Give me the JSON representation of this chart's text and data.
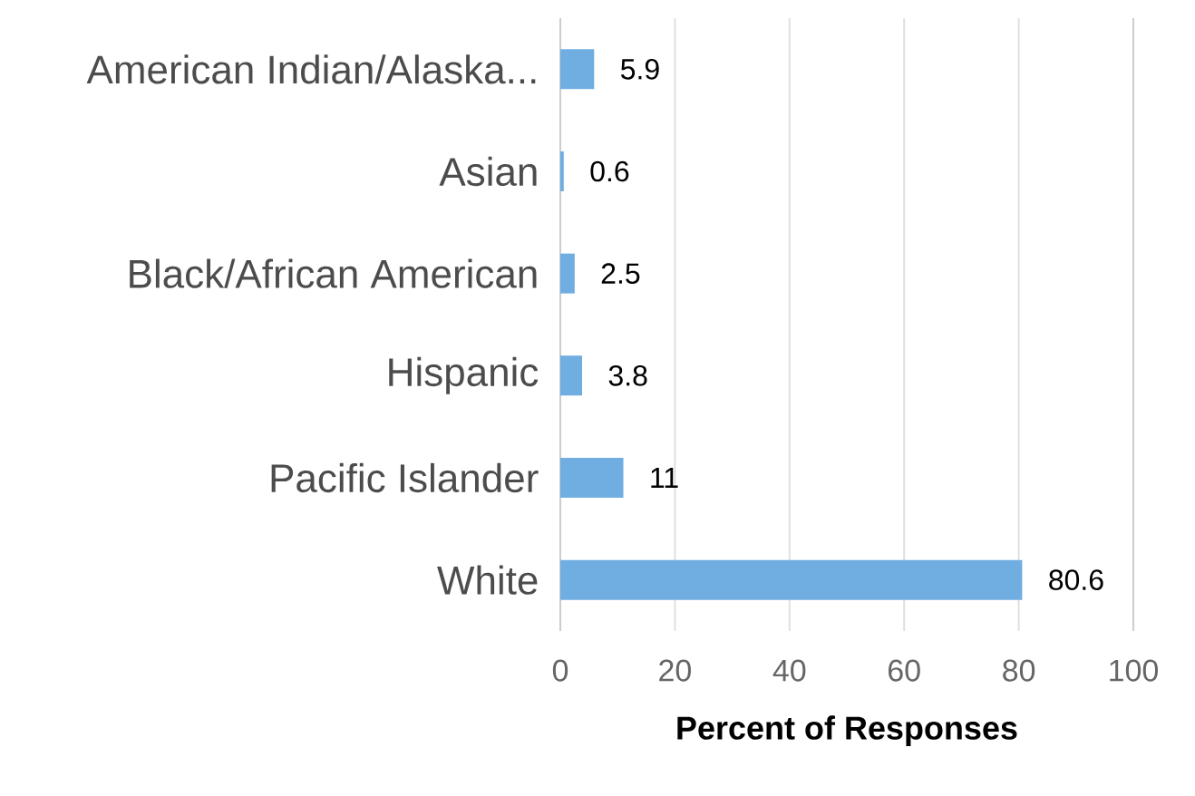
{
  "chart_data": {
    "type": "bar",
    "orientation": "horizontal",
    "xlabel": "Percent of Responses",
    "categories": [
      "American Indian/Alaska...",
      "Asian",
      "Black/African American",
      "Hispanic",
      "Pacific Islander",
      "White"
    ],
    "values": [
      5.9,
      0.6,
      2.5,
      3.8,
      11,
      80.6
    ],
    "value_labels": [
      "5.9",
      "0.6",
      "2.5",
      "3.8",
      "11",
      "80.6"
    ],
    "color": "#70ade0",
    "xlim": [
      0,
      100
    ],
    "xticks": [
      0,
      20,
      40,
      60,
      80,
      100
    ],
    "grid": "x"
  }
}
